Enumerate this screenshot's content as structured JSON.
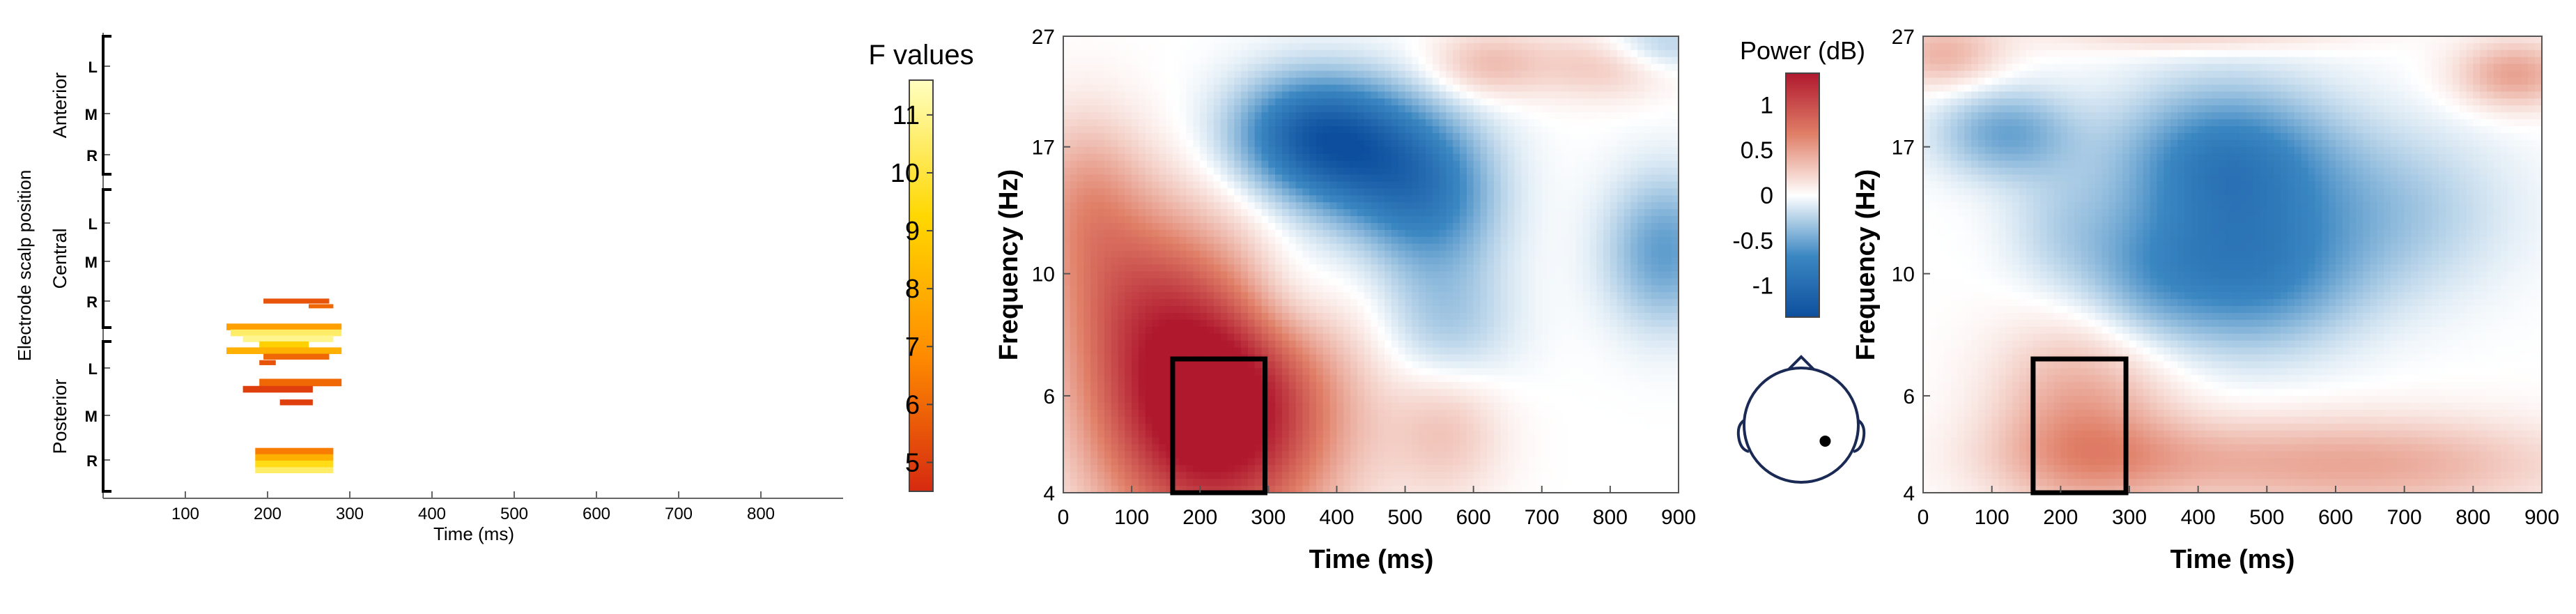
{
  "chart_data": [
    {
      "type": "heatmap",
      "ylabel": "Electrode scalp position",
      "xlabel": "Time (ms)",
      "x_ticks": [
        100,
        200,
        300,
        400,
        500,
        600,
        700,
        800
      ],
      "xlim": [
        0,
        900
      ],
      "groups": [
        {
          "name": "Anterior",
          "rows": [
            "L",
            "M",
            "R"
          ]
        },
        {
          "name": "Central",
          "rows": [
            "L",
            "M",
            "R"
          ]
        },
        {
          "name": "Posterior",
          "rows": [
            "L",
            "M",
            "R"
          ]
        }
      ],
      "colorbar": {
        "title": "F values",
        "range": [
          4.5,
          11.6
        ],
        "ticks": [
          5,
          6,
          7,
          8,
          9,
          10,
          11
        ],
        "colors": [
          "#d62a10",
          "#ff8c00",
          "#ffd700",
          "#ffffc0"
        ]
      },
      "clusters": [
        {
          "t0": 195,
          "t1": 275,
          "row": 4.0,
          "h": 0.12,
          "f": 5.5
        },
        {
          "t0": 250,
          "t1": 280,
          "row": 3.87,
          "h": 0.1,
          "f": 6.0
        },
        {
          "t0": 150,
          "t1": 290,
          "row": 3.35,
          "h": 0.16,
          "f": 7.5
        },
        {
          "t0": 155,
          "t1": 290,
          "row": 3.2,
          "h": 0.16,
          "f": 10.5
        },
        {
          "t0": 170,
          "t1": 280,
          "row": 3.05,
          "h": 0.16,
          "f": 11.0
        },
        {
          "t0": 190,
          "t1": 250,
          "row": 2.9,
          "h": 0.16,
          "f": 9.0
        },
        {
          "t0": 150,
          "t1": 290,
          "row": 2.75,
          "h": 0.16,
          "f": 8.0
        },
        {
          "t0": 195,
          "t1": 275,
          "row": 2.6,
          "h": 0.14,
          "f": 6.0
        },
        {
          "t0": 190,
          "t1": 210,
          "row": 2.45,
          "h": 0.12,
          "f": 5.5
        },
        {
          "t0": 190,
          "t1": 290,
          "row": 1.95,
          "h": 0.18,
          "f": 6.0
        },
        {
          "t0": 170,
          "t1": 255,
          "row": 1.78,
          "h": 0.16,
          "f": 5.0
        },
        {
          "t0": 215,
          "t1": 255,
          "row": 1.45,
          "h": 0.14,
          "f": 5.0
        },
        {
          "t0": 185,
          "t1": 280,
          "row": 0.22,
          "h": 0.16,
          "f": 6.5
        },
        {
          "t0": 185,
          "t1": 280,
          "row": 0.06,
          "h": 0.16,
          "f": 8.0
        },
        {
          "t0": 185,
          "t1": 280,
          "row": -0.1,
          "h": 0.16,
          "f": 9.5
        },
        {
          "t0": 185,
          "t1": 280,
          "row": -0.26,
          "h": 0.14,
          "f": 10.5
        }
      ]
    },
    {
      "type": "heatmap",
      "xlabel": "Time (ms)",
      "ylabel": "Frequency (Hz)",
      "x_ticks": [
        0,
        100,
        200,
        300,
        400,
        500,
        600,
        700,
        800,
        900
      ],
      "y_ticks": [
        4,
        6,
        10,
        17,
        27
      ],
      "xlim": [
        0,
        900
      ],
      "ylim": [
        4,
        27
      ],
      "y_scale": "log",
      "roi": {
        "t0": 160,
        "t1": 295,
        "f0": 4,
        "f1": 7
      },
      "blobs": [
        {
          "t": 220,
          "f": 5.7,
          "st": 120,
          "sf": 0.38,
          "a": 1.7
        },
        {
          "t": 100,
          "f": 9.5,
          "st": 90,
          "sf": 0.3,
          "a": 0.55
        },
        {
          "t": 30,
          "f": 14,
          "st": 60,
          "sf": 0.25,
          "a": 0.4
        },
        {
          "t": 360,
          "f": 18,
          "st": 80,
          "sf": 0.17,
          "a": -0.9
        },
        {
          "t": 460,
          "f": 16,
          "st": 90,
          "sf": 0.2,
          "a": -0.8
        },
        {
          "t": 540,
          "f": 13,
          "st": 70,
          "sf": 0.22,
          "a": -0.5
        },
        {
          "t": 880,
          "f": 11,
          "st": 60,
          "sf": 0.22,
          "a": -0.55
        },
        {
          "t": 560,
          "f": 8,
          "st": 70,
          "sf": 0.2,
          "a": -0.3
        },
        {
          "t": 330,
          "f": 9,
          "st": 60,
          "sf": 0.2,
          "a": -0.3
        },
        {
          "t": 620,
          "f": 24,
          "st": 60,
          "sf": 0.1,
          "a": 0.35
        },
        {
          "t": 790,
          "f": 24,
          "st": 70,
          "sf": 0.1,
          "a": 0.3
        },
        {
          "t": 560,
          "f": 5.2,
          "st": 60,
          "sf": 0.2,
          "a": 0.3
        },
        {
          "t": 870,
          "f": 26,
          "st": 60,
          "sf": 0.08,
          "a": -0.3
        }
      ]
    },
    {
      "type": "colorbar",
      "title": "Power (dB)",
      "range": [
        -1.35,
        1.35
      ],
      "ticks": [
        "1",
        "0.5",
        "0",
        "-0.5",
        "-1"
      ],
      "tick_values": [
        1,
        0.5,
        0,
        -0.5,
        -1
      ],
      "colors": [
        "#0d4f9e",
        "#3b87c2",
        "#ffffff",
        "#e07f68",
        "#b0182e"
      ]
    },
    {
      "type": "heatmap",
      "xlabel": "Time (ms)",
      "ylabel": "Frequency (Hz)",
      "x_ticks": [
        0,
        100,
        200,
        300,
        400,
        500,
        600,
        700,
        800,
        900
      ],
      "y_ticks": [
        4,
        6,
        10,
        17,
        27
      ],
      "xlim": [
        0,
        900
      ],
      "ylim": [
        4,
        27
      ],
      "y_scale": "log",
      "roi": {
        "t0": 160,
        "t1": 295,
        "f0": 4,
        "f1": 7
      },
      "blobs": [
        {
          "t": 230,
          "f": 5.5,
          "st": 90,
          "sf": 0.28,
          "a": 0.5
        },
        {
          "t": 650,
          "f": 4.5,
          "st": 200,
          "sf": 0.14,
          "a": 0.45
        },
        {
          "t": 300,
          "f": 4.6,
          "st": 150,
          "sf": 0.12,
          "a": 0.25
        },
        {
          "t": 30,
          "f": 25,
          "st": 60,
          "sf": 0.1,
          "a": 0.4
        },
        {
          "t": 860,
          "f": 23,
          "st": 60,
          "sf": 0.1,
          "a": 0.5
        },
        {
          "t": 400,
          "f": 27,
          "st": 150,
          "sf": 0.05,
          "a": 0.25
        },
        {
          "t": 120,
          "f": 18,
          "st": 70,
          "sf": 0.13,
          "a": -0.5
        },
        {
          "t": 440,
          "f": 16,
          "st": 110,
          "sf": 0.22,
          "a": -0.8
        },
        {
          "t": 470,
          "f": 10,
          "st": 110,
          "sf": 0.22,
          "a": -0.7
        },
        {
          "t": 320,
          "f": 10,
          "st": 70,
          "sf": 0.2,
          "a": -0.3
        },
        {
          "t": 680,
          "f": 13,
          "st": 120,
          "sf": 0.25,
          "a": -0.3
        },
        {
          "t": 200,
          "f": 12,
          "st": 60,
          "sf": 0.2,
          "a": -0.2
        }
      ]
    }
  ],
  "topoplot": {
    "electrode": {
      "side": "right",
      "dx": 0.42,
      "dy": 0.28
    }
  }
}
